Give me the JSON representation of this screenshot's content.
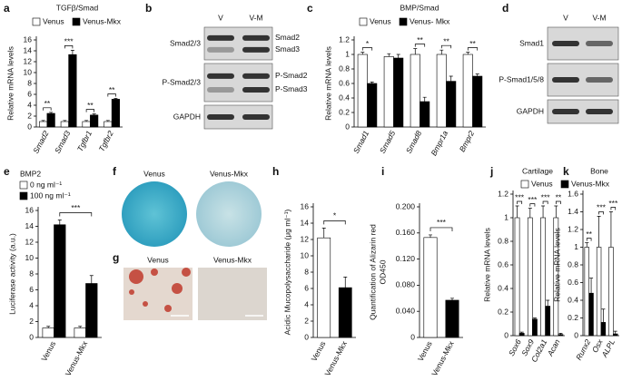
{
  "chart_data": [
    {
      "type": "bar",
      "panel": "a",
      "title": "TGFβ/Smad",
      "ylabel": "Relative mRNA levels",
      "categories": [
        "Smad2",
        "Smad3",
        "Tgfbr1",
        "Tgfbr2"
      ],
      "italic_categories": true,
      "series": [
        {
          "name": "Venus",
          "color": "#ffffff",
          "values": [
            1,
            1,
            1,
            1
          ],
          "errors": [
            0.2,
            0.2,
            0.2,
            0.2
          ]
        },
        {
          "name": "Venus-Mkx",
          "color": "#000000",
          "values": [
            2.5,
            13.3,
            2.2,
            5.1
          ],
          "errors": [
            0.2,
            0.8,
            0.2,
            0.15
          ]
        }
      ],
      "ylim": [
        0,
        16
      ],
      "yticks": [
        0,
        2,
        4,
        6,
        8,
        10,
        12,
        14,
        16
      ],
      "significance": [
        "**",
        "***",
        "**",
        "**"
      ]
    },
    {
      "type": "bar",
      "panel": "c",
      "title": "BMP/Smad",
      "ylabel": "Relative mRNA levels",
      "categories": [
        "Smad1",
        "Smad5",
        "Smad8",
        "Bmpr1a",
        "Bmpr2"
      ],
      "italic_categories": true,
      "series": [
        {
          "name": "Venus",
          "color": "#ffffff",
          "values": [
            1,
            0.97,
            1,
            1,
            1
          ],
          "errors": [
            0.03,
            0.04,
            0.08,
            0.06,
            0.03
          ]
        },
        {
          "name": "Venus- Mkx",
          "color": "#000000",
          "values": [
            0.6,
            0.95,
            0.35,
            0.63,
            0.7
          ],
          "errors": [
            0.02,
            0.05,
            0.06,
            0.07,
            0.03
          ]
        }
      ],
      "ylim": [
        0,
        1.2
      ],
      "yticks": [
        0,
        0.2,
        0.4,
        0.6,
        0.8,
        1,
        1.2
      ],
      "significance": [
        "*",
        null,
        "**",
        "**",
        "**"
      ]
    },
    {
      "type": "bar",
      "panel": "e",
      "title": "BMP2",
      "ylabel": "Luciferase activity (a.u.)",
      "categories": [
        "Venus",
        "Venus-Mkx"
      ],
      "italic_categories": false,
      "series": [
        {
          "name": "0 ng ml⁻¹",
          "color": "#ffffff",
          "values": [
            1.2,
            1.2
          ],
          "errors": [
            0.2,
            0.2
          ]
        },
        {
          "name": "100 ng ml⁻¹",
          "color": "#000000",
          "values": [
            14.2,
            6.8
          ],
          "errors": [
            0.6,
            1.0
          ]
        }
      ],
      "ylim": [
        0,
        16
      ],
      "yticks": [
        0,
        2,
        4,
        6,
        8,
        10,
        12,
        14,
        16
      ],
      "significance": "***"
    },
    {
      "type": "bar",
      "panel": "h",
      "ylabel": "Acidic Mucopolysaccharide (μg ml⁻¹)",
      "categories": [
        "Venus",
        "Venus-Mkx"
      ],
      "italic_categories": false,
      "values": [
        12.2,
        6.1
      ],
      "errors": [
        1.2,
        1.3
      ],
      "colors": [
        "#ffffff",
        "#000000"
      ],
      "ylim": [
        0,
        16
      ],
      "yticks": [
        0,
        2,
        4,
        6,
        8,
        10,
        12,
        14,
        16
      ],
      "significance": "*"
    },
    {
      "type": "bar",
      "panel": "i",
      "ylabel": [
        "Quantification of Alizarin red",
        "OD450"
      ],
      "categories": [
        "Venus",
        "Venus-Mkx"
      ],
      "italic_categories": false,
      "values": [
        0.153,
        0.057
      ],
      "errors": [
        0.004,
        0.003
      ],
      "colors": [
        "#ffffff",
        "#000000"
      ],
      "ylim": [
        0,
        0.2
      ],
      "yticks": [
        0,
        {
          "value": 0.04,
          "label": "0.040"
        },
        {
          "value": 0.08,
          "label": "0.080"
        },
        {
          "value": 0.12,
          "label": "0.120"
        },
        {
          "value": 0.16,
          "label": "0.160"
        },
        {
          "value": 0.2,
          "label": "0.200"
        }
      ],
      "significance": "***"
    },
    {
      "type": "bar",
      "panel": "j",
      "title": "Cartilage",
      "ylabel": "Relative mRNA levels",
      "categories": [
        "Sox6",
        "Sox9",
        "Col2a1",
        "Acan"
      ],
      "italic_categories": true,
      "series": [
        {
          "name": "Venus",
          "color": "#ffffff",
          "values": [
            1,
            1,
            1,
            1
          ],
          "errors": [
            0.1,
            0.08,
            0.1,
            0.1
          ]
        },
        {
          "name": "Venus-Mkx",
          "color": "#000000",
          "values": [
            0.02,
            0.14,
            0.25,
            0.01
          ],
          "errors": [
            0.01,
            0.01,
            0.05,
            0.01
          ]
        }
      ],
      "ylim": [
        0,
        1.2
      ],
      "yticks": [
        0,
        0.2,
        0.4,
        0.6,
        0.8,
        1,
        1.2
      ],
      "significance": [
        "***",
        "***",
        "***",
        "**"
      ]
    },
    {
      "type": "bar",
      "panel": "k",
      "title": "Bone",
      "ylabel": "Relative mRNA levels",
      "categories": [
        "Runx2",
        "Osx",
        "ALPL"
      ],
      "italic_categories": true,
      "series": [
        {
          "color": "#ffffff",
          "values": [
            1,
            1,
            1
          ],
          "errors": [
            0.05,
            0.35,
            0.4
          ]
        },
        {
          "color": "#000000",
          "values": [
            0.48,
            0.15,
            0.02
          ],
          "errors": [
            0.17,
            0.15,
            0.03
          ]
        }
      ],
      "ylim": [
        0,
        1.6
      ],
      "yticks": [
        0,
        0.2,
        0.4,
        0.6,
        0.8,
        1,
        1.2,
        1.4,
        1.6
      ],
      "significance": [
        "**",
        "***",
        "***"
      ]
    }
  ],
  "blots": [
    {
      "panel": "b",
      "columns": [
        "V",
        "V-M"
      ],
      "rows": [
        {
          "label": "Smad2/3",
          "bands": [
            "Smad2",
            "Smad3"
          ]
        },
        {
          "label": "P-Smad2/3",
          "bands": [
            "P-Smad2",
            "P-Smad3"
          ]
        },
        {
          "label": "GAPDH"
        }
      ]
    },
    {
      "panel": "d",
      "columns": [
        "V",
        "V-M"
      ],
      "rows": [
        {
          "label": "Smad1"
        },
        {
          "label": "P-Smad1/5/8"
        },
        {
          "label": "GAPDH"
        }
      ]
    }
  ],
  "images": [
    {
      "panel": "f",
      "labels": [
        "Venus",
        "Venus-Mkx"
      ]
    },
    {
      "panel": "g",
      "labels": [
        "Venus",
        "Venus-Mkx"
      ]
    }
  ]
}
